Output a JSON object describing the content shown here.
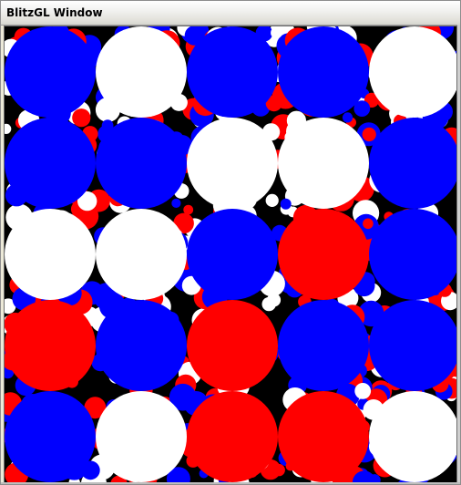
{
  "window": {
    "title": "BlitzGL Window"
  },
  "colors": {
    "blue": "#0000ff",
    "white": "#ffffff",
    "red": "#ff0000",
    "background": "#000000"
  },
  "grid": {
    "rows": [
      [
        "blue",
        "white",
        "blue",
        "blue",
        "white"
      ],
      [
        "blue",
        "blue",
        "white",
        "white",
        "blue"
      ],
      [
        "white",
        "white",
        "blue",
        "red",
        "blue"
      ],
      [
        "red",
        "blue",
        "red",
        "blue",
        "blue"
      ],
      [
        "blue",
        "white",
        "red",
        "red",
        "white"
      ]
    ]
  }
}
